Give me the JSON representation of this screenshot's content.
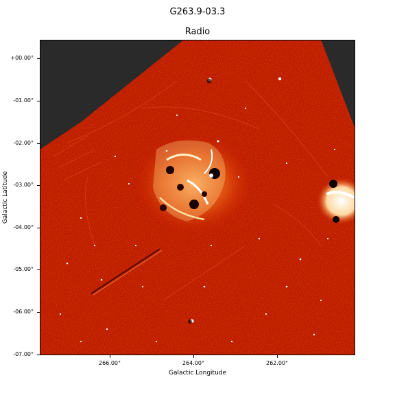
{
  "figure": {
    "title": "G263.9-03.3",
    "subtitle": "Radio"
  },
  "axes": {
    "xlabel": "Galactic Longitude",
    "ylabel": "Galactic Latitude",
    "xticks": [
      "266.00°",
      "264.00°",
      "262.00°"
    ],
    "yticks": [
      "+00.00°",
      "-01.00°",
      "-02.00°",
      "-03.00°",
      "-04.00°",
      "-05.00°",
      "-06.00°",
      "-07.00°"
    ]
  },
  "image": {
    "colormap": "hot",
    "colors": {
      "background": "#2a2a2a",
      "base": "#b81000",
      "bright": "#ffffff",
      "mid": "#ff8a20"
    }
  }
}
